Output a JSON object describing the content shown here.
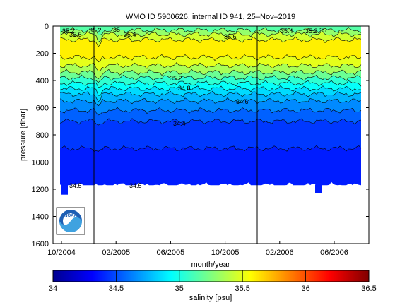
{
  "chart_data": {
    "type": "heatmap",
    "title": "WMO ID 5900626, internal ID 941, 25–Nov–2019",
    "xlabel": "month/year",
    "ylabel": "pressure [dbar]",
    "x_tick_labels": [
      "10/2004",
      "02/2005",
      "06/2005",
      "10/2005",
      "02/2006",
      "06/2006"
    ],
    "y_ticks": [
      0,
      200,
      400,
      600,
      800,
      1000,
      1200,
      1400,
      1600
    ],
    "ylim": [
      0,
      1600
    ],
    "y_inverted": true,
    "colorbar": {
      "label": "salinity [psu]",
      "ticks": [
        "34",
        "34.5",
        "35",
        "35.5",
        "36",
        "36.5"
      ],
      "range": [
        34,
        36.5
      ],
      "colormap": "jet"
    },
    "contour_labels": [
      {
        "text": "35.2"
      },
      {
        "text": "35.6"
      },
      {
        "text": "35.2"
      },
      {
        "text": "35"
      },
      {
        "text": "35.4"
      },
      {
        "text": "35.6"
      },
      {
        "text": "35.4"
      },
      {
        "text": "35.2"
      },
      {
        "text": "35"
      },
      {
        "text": "35.2"
      },
      {
        "text": "34.8"
      },
      {
        "text": "34.6"
      },
      {
        "text": "34.4"
      },
      {
        "text": "34.5"
      },
      {
        "text": "34.5"
      }
    ],
    "vertical_markers": 2,
    "bands": [
      {
        "p": 0,
        "s": 35.15
      },
      {
        "p": 30,
        "s": 35.3
      },
      {
        "p": 60,
        "s": 35.45
      },
      {
        "p": 100,
        "s": 35.6
      },
      {
        "p": 230,
        "s": 35.5
      },
      {
        "p": 290,
        "s": 35.35
      },
      {
        "p": 340,
        "s": 35.2
      },
      {
        "p": 380,
        "s": 35.05
      },
      {
        "p": 420,
        "s": 34.95
      },
      {
        "p": 460,
        "s": 34.85
      },
      {
        "p": 500,
        "s": 34.75
      },
      {
        "p": 550,
        "s": 34.65
      },
      {
        "p": 620,
        "s": 34.55
      },
      {
        "p": 700,
        "s": 34.45
      },
      {
        "p": 900,
        "s": 34.38
      },
      {
        "p": 1170,
        "s": null
      }
    ]
  },
  "logo": {
    "text": "NOAA"
  }
}
